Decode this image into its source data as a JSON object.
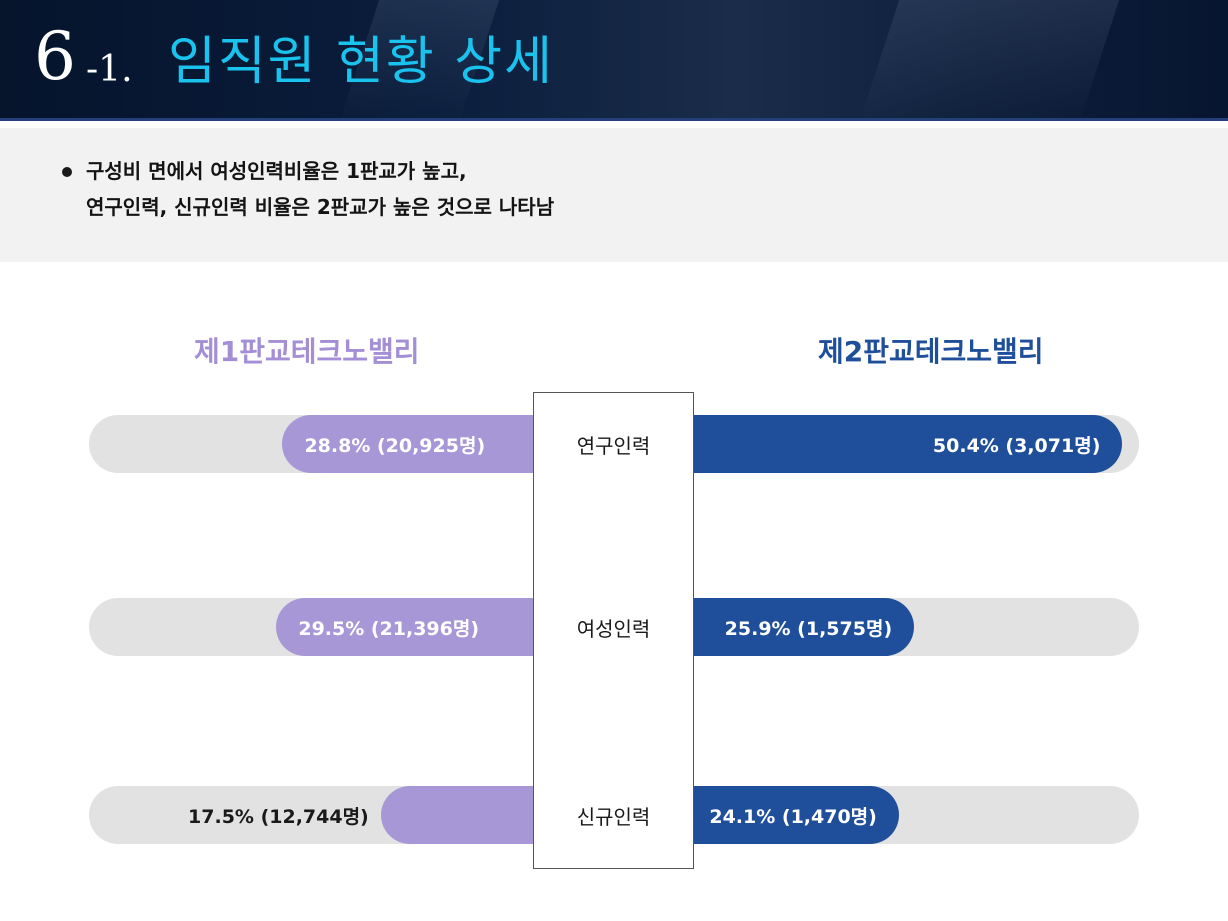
{
  "header": {
    "number": "6",
    "sub_number": "-1.",
    "title": "임직원 현황 상세"
  },
  "summary": {
    "line1": "구성비 면에서 여성인력비율은 1판교가 높고,",
    "line2": "연구인력, 신규인력 비율은 2판교가 높은 것으로 나타남"
  },
  "chart_data": {
    "type": "bar",
    "layout": "butterfly",
    "categories": [
      "연구인력",
      "여성인력",
      "신규인력"
    ],
    "series": [
      {
        "name": "제1판교테크노밸리",
        "values": [
          28.8,
          29.5,
          17.5
        ],
        "counts": [
          "20,925명",
          "21,396명",
          "12,744명"
        ],
        "labels": [
          "28.8% (20,925명)",
          "29.5% (21,396명)",
          "17.5% (12,744명)"
        ]
      },
      {
        "name": "제2판교테크노밸리",
        "values": [
          50.4,
          25.9,
          24.1
        ],
        "counts": [
          "3,071명",
          "1,575명",
          "1,470명"
        ],
        "labels": [
          "50.4% (3,071명)",
          "25.9% (1,575명)",
          "24.1% (1,470명)"
        ]
      }
    ],
    "unit": "%",
    "colors": {
      "left": "#a897d6",
      "right": "#1f4f9a",
      "track": "#e2e2e2"
    }
  }
}
